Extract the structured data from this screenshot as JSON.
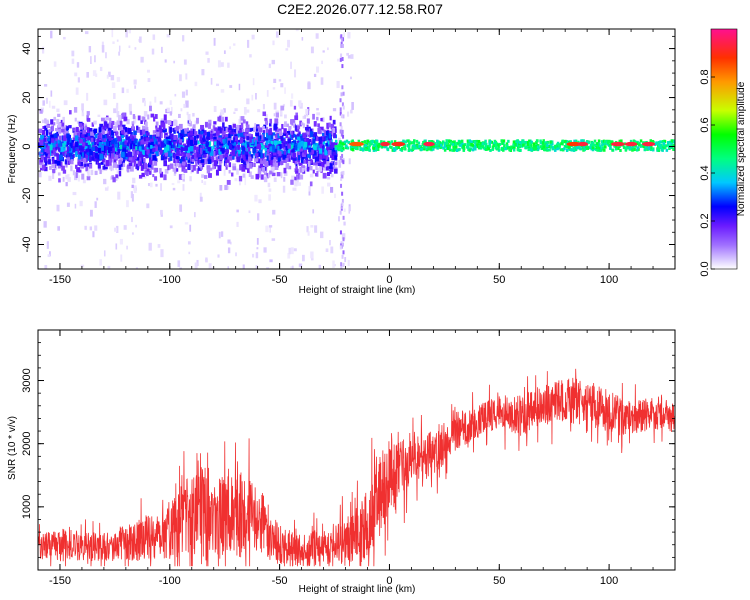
{
  "figure": {
    "title": "C2E2.2026.077.12.58.R07"
  },
  "chart_data": [
    {
      "type": "heatmap",
      "title": "C2E2.2026.077.12.58.R07",
      "xlabel": "Height of straight line (km)",
      "ylabel": "Frequency (Hz)",
      "xlim": [
        -160,
        130
      ],
      "ylim": [
        -50,
        48
      ],
      "xticks": [
        -150,
        -100,
        -50,
        0,
        50,
        100
      ],
      "yticks": [
        -40,
        -20,
        0,
        20,
        40
      ],
      "grid": false,
      "colorbar": {
        "label": "Normalized spectral amplitude",
        "range": [
          0,
          1
        ],
        "ticks": [
          "0.0",
          "0.2",
          "0.4",
          "0.6",
          "0.8"
        ],
        "colormap": [
          "#ffffff",
          "#d8c8ff",
          "#a070ff",
          "#6a1bff",
          "#0000ff",
          "#00c8ff",
          "#00ff80",
          "#00ff00",
          "#c8ff00",
          "#ff9900",
          "#ff3000",
          "#ff1090"
        ]
      },
      "description_values": {
        "dominant_band_center_hz": 1,
        "strong_band_x_range_km": [
          -160,
          -25
        ],
        "narrow_band_x_range_km": [
          -25,
          130
        ],
        "narrow_band_half_width_hz": 2,
        "streak_x_km": -22,
        "streak_frequency_range_hz": [
          -48,
          48
        ]
      }
    },
    {
      "type": "line",
      "xlabel": "Height of straight line (km)",
      "ylabel": "SNR (10 * v/v)",
      "xlim": [
        -160,
        130
      ],
      "ylim": [
        0,
        3800
      ],
      "xticks": [
        -150,
        -100,
        -50,
        0,
        50,
        100
      ],
      "yticks": [
        1000,
        2000,
        3000
      ],
      "grid": false,
      "series": [
        {
          "name": "SNR",
          "color": "#f03030",
          "x": [
            -160,
            -150,
            -140,
            -130,
            -120,
            -110,
            -100,
            -90,
            -85,
            -80,
            -70,
            -60,
            -50,
            -40,
            -30,
            -20,
            -10,
            -5,
            0,
            10,
            20,
            30,
            40,
            50,
            60,
            70,
            80,
            90,
            100,
            110,
            120,
            130
          ],
          "y": [
            350,
            420,
            380,
            360,
            420,
            520,
            650,
            900,
            1200,
            800,
            900,
            800,
            400,
            300,
            380,
            450,
            700,
            1200,
            1500,
            1700,
            1850,
            2200,
            2350,
            2500,
            2450,
            2600,
            2700,
            2650,
            2500,
            2400,
            2500,
            2400
          ],
          "noise_amplitude": [
            250,
            300,
            300,
            280,
            350,
            450,
            600,
            900,
            1400,
            800,
            900,
            700,
            400,
            300,
            400,
            500,
            700,
            900,
            700,
            500,
            450,
            400,
            350,
            350,
            400,
            400,
            450,
            450,
            400,
            350,
            350,
            300
          ]
        }
      ]
    }
  ]
}
